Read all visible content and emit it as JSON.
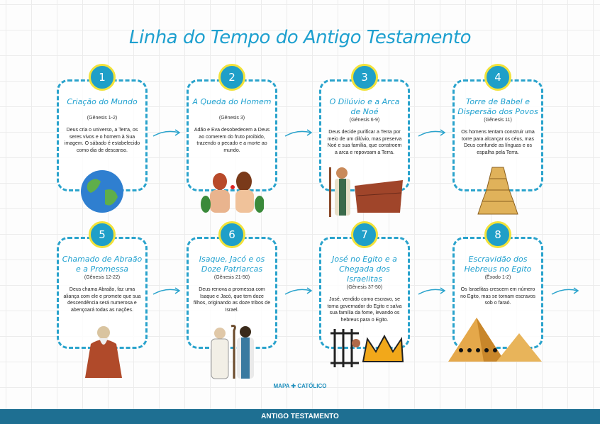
{
  "title": "Linha do Tempo do Antigo Testamento",
  "events": [
    {
      "number": "1",
      "title": "Criação do Mundo",
      "reference": "(Gênesis 1-2)",
      "description": "Deus cria o universo, a Terra, os seres vivos e o homem à Sua imagem. O sábado é estabelecido como dia de descanso.",
      "image": "globe"
    },
    {
      "number": "2",
      "title": "A Queda do Homem",
      "reference": "(Gênesis 3)",
      "description": "Adão e Eva desobedecem a Deus ao comerem do fruto proibido, trazendo o pecado e a morte ao mundo.",
      "image": "adam-and-eve"
    },
    {
      "number": "3",
      "title": "O Dilúvio e a Arca de Noé",
      "reference": "(Gênesis 6-9)",
      "description": "Deus decide purificar a Terra por meio de um dilúvio, mas preserva Noé e sua família, que constroem a arca e repovoam a Terra.",
      "image": "noah-and-ark"
    },
    {
      "number": "4",
      "title": "Torre de Babel e Dispersão dos Povos",
      "reference": "(Gênesis 11)",
      "description": "Os homens tentam construir uma torre para alcançar os céus, mas Deus confunde as línguas e os espalha pela Terra.",
      "image": "tower-of-babel"
    },
    {
      "number": "5",
      "title": "Chamado de Abraão e a Promessa",
      "reference": "(Gênesis 12-22)",
      "description": "Deus chama Abraão, faz uma aliança com ele e promete que sua descendência será numerosa e abençoará todas as nações.",
      "image": "abraham"
    },
    {
      "number": "6",
      "title": "Isaque, Jacó e os Doze Patriarcas",
      "reference": "(Gênesis 21-50)",
      "description": "Deus renova a promessa com Isaque e Jacó, que tem doze filhos, originando as doze tribos de Israel.",
      "image": "patriarchs"
    },
    {
      "number": "7",
      "title": "José no Egito e a Chegada dos Israelitas",
      "reference": "(Gênesis 37-50)",
      "description": "José, vendido como escravo, se torna governador do Egito e salva sua família da fome, levando os hebreus para o Egito.",
      "image": "prison-and-crown"
    },
    {
      "number": "8",
      "title": "Escravidão dos Hebreus no Egito",
      "reference": "(Êxodo 1-2)",
      "description": "Os Israelitas crescem em número no Egito, mas se tornam escravos sob o faraó.",
      "image": "pyramids"
    }
  ],
  "brand": "MAPA ✚ CATÓLICO",
  "footer": "ANTIGO TESTAMENTO",
  "colors": {
    "accent": "#1ea0cf",
    "circle_border": "#f2e23a",
    "footer": "#1e6f92"
  }
}
